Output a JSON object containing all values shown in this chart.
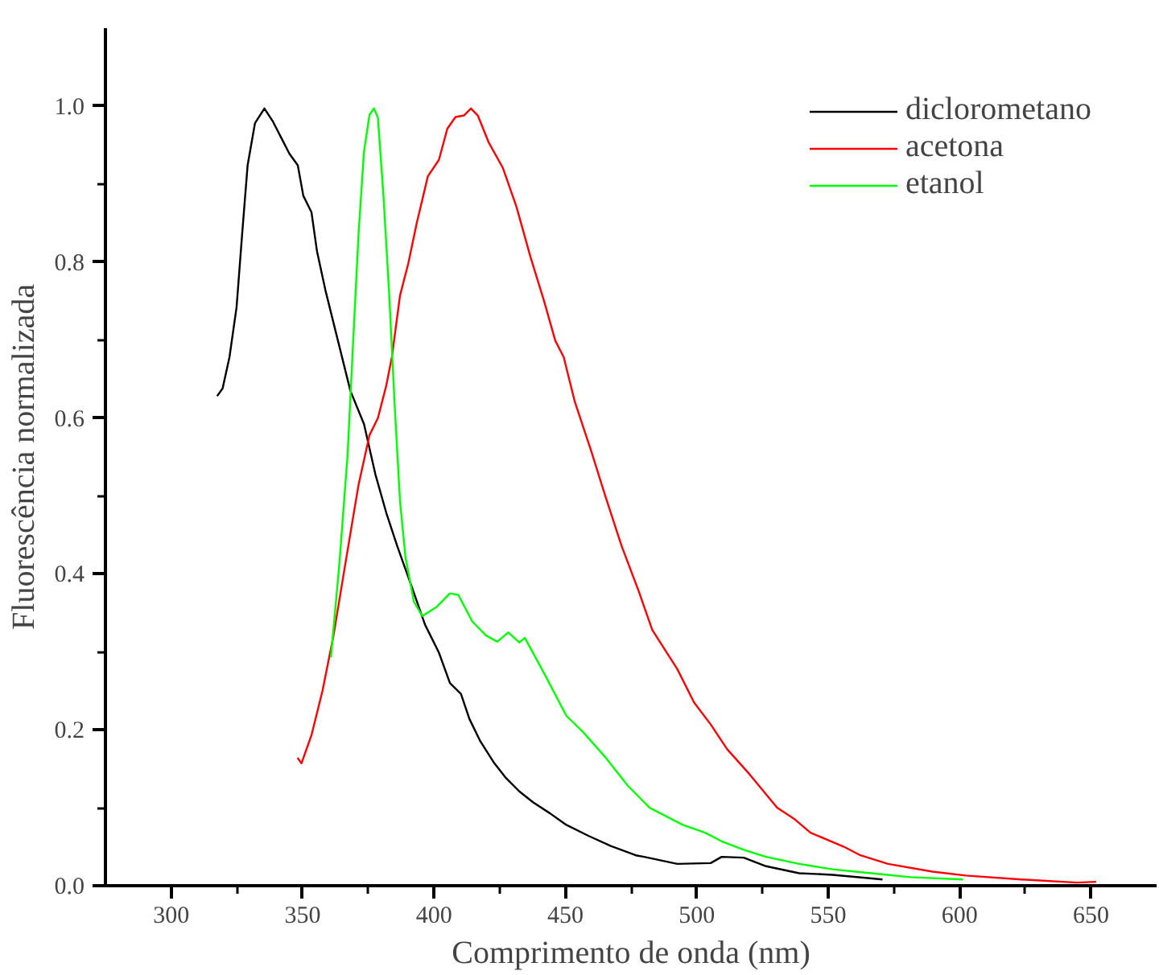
{
  "chart_data": {
    "type": "line",
    "xlabel": "Comprimento de onda (nm)",
    "ylabel": "Fluorescência normalizada",
    "xlim": [
      275,
      675
    ],
    "xticks": [
      300,
      350,
      400,
      450,
      500,
      550,
      600,
      650
    ],
    "ylim": [
      0,
      1.1
    ],
    "yticks": [
      {
        "value": 0,
        "label": "0.0"
      },
      {
        "value": 0.2,
        "label": "0.2"
      },
      {
        "value": 0.4,
        "label": "0.4"
      },
      {
        "value": 0.6,
        "label": "0.6"
      },
      {
        "value": 0.8,
        "label": "0.8"
      },
      {
        "value": 1.0,
        "label": "1.0"
      }
    ],
    "grid": false,
    "legend": "top right",
    "marker": "none",
    "line_style": "solid",
    "series": [
      {
        "name": "diclorometano",
        "color": "#000000",
        "x": [
          317.5,
          319.6,
          322.2,
          324.9,
          327.0,
          329.1,
          331.9,
          335.5,
          338.6,
          341.8,
          345.0,
          348.2,
          350.3,
          353.4,
          355.5,
          358.7,
          362.9,
          368.2,
          373.4,
          377.7,
          381.9,
          386.1,
          391.4,
          396.6,
          401.9,
          406.1,
          410.3,
          413.5,
          417.7,
          423.0,
          427.2,
          432.5,
          437.7,
          444.1,
          450.4,
          458.8,
          467.3,
          476.8,
          480.0,
          492.6,
          505.3,
          509.5,
          517.9,
          526.4,
          539.0,
          551.7,
          564.3,
          570.7
        ],
        "values": [
          0.628,
          0.638,
          0.678,
          0.742,
          0.835,
          0.924,
          0.978,
          0.997,
          0.981,
          0.96,
          0.939,
          0.924,
          0.885,
          0.864,
          0.814,
          0.764,
          0.707,
          0.635,
          0.592,
          0.528,
          0.478,
          0.435,
          0.385,
          0.335,
          0.299,
          0.26,
          0.246,
          0.214,
          0.185,
          0.157,
          0.139,
          0.121,
          0.107,
          0.093,
          0.078,
          0.064,
          0.051,
          0.039,
          0.037,
          0.028,
          0.029,
          0.037,
          0.036,
          0.025,
          0.016,
          0.014,
          0.01,
          0.008
        ]
      },
      {
        "name": "acetona",
        "color": "#ff0000",
        "x": [
          348.1,
          349.6,
          353.4,
          357.6,
          361.8,
          366.0,
          371.3,
          375.5,
          378.7,
          381.9,
          384.0,
          387.1,
          390.3,
          393.4,
          397.7,
          401.9,
          405.1,
          408.2,
          411.4,
          414.1,
          416.7,
          420.9,
          426.2,
          431.4,
          436.7,
          442.0,
          446.2,
          449.4,
          453.6,
          459.9,
          465.2,
          471.5,
          477.9,
          483.1,
          492.6,
          499.0,
          505.3,
          511.6,
          520.1,
          530.6,
          537.0,
          543.3,
          556.0,
          562.3,
          572.8,
          589.7,
          602.4,
          623.5,
          644.6,
          652.0
        ],
        "values": [
          0.164,
          0.157,
          0.193,
          0.25,
          0.321,
          0.407,
          0.514,
          0.578,
          0.6,
          0.642,
          0.678,
          0.757,
          0.799,
          0.849,
          0.91,
          0.931,
          0.971,
          0.986,
          0.988,
          0.997,
          0.988,
          0.953,
          0.921,
          0.871,
          0.807,
          0.749,
          0.699,
          0.678,
          0.621,
          0.557,
          0.5,
          0.435,
          0.378,
          0.328,
          0.278,
          0.235,
          0.207,
          0.175,
          0.143,
          0.1,
          0.086,
          0.068,
          0.05,
          0.039,
          0.028,
          0.018,
          0.013,
          0.008,
          0.004,
          0.005
        ]
      },
      {
        "name": "etanol",
        "color": "#00ff00",
        "x": [
          360.8,
          363.9,
          367.1,
          369.2,
          371.3,
          373.4,
          375.5,
          377.2,
          378.7,
          380.8,
          382.9,
          385.0,
          387.1,
          389.2,
          392.4,
          395.6,
          400.8,
          406.1,
          409.3,
          414.6,
          419.8,
          424.1,
          428.3,
          432.5,
          434.6,
          442.0,
          450.4,
          456.8,
          465.2,
          473.6,
          482.1,
          494.7,
          503.2,
          509.5,
          517.9,
          526.4,
          539.0,
          551.7,
          566.5,
          581.3,
          601.3
        ],
        "values": [
          0.293,
          0.408,
          0.55,
          0.693,
          0.835,
          0.942,
          0.989,
          0.997,
          0.985,
          0.885,
          0.764,
          0.621,
          0.493,
          0.421,
          0.364,
          0.346,
          0.357,
          0.375,
          0.373,
          0.339,
          0.321,
          0.313,
          0.325,
          0.312,
          0.318,
          0.272,
          0.218,
          0.197,
          0.165,
          0.129,
          0.1,
          0.078,
          0.068,
          0.057,
          0.046,
          0.037,
          0.028,
          0.021,
          0.016,
          0.011,
          0.008
        ]
      }
    ]
  }
}
